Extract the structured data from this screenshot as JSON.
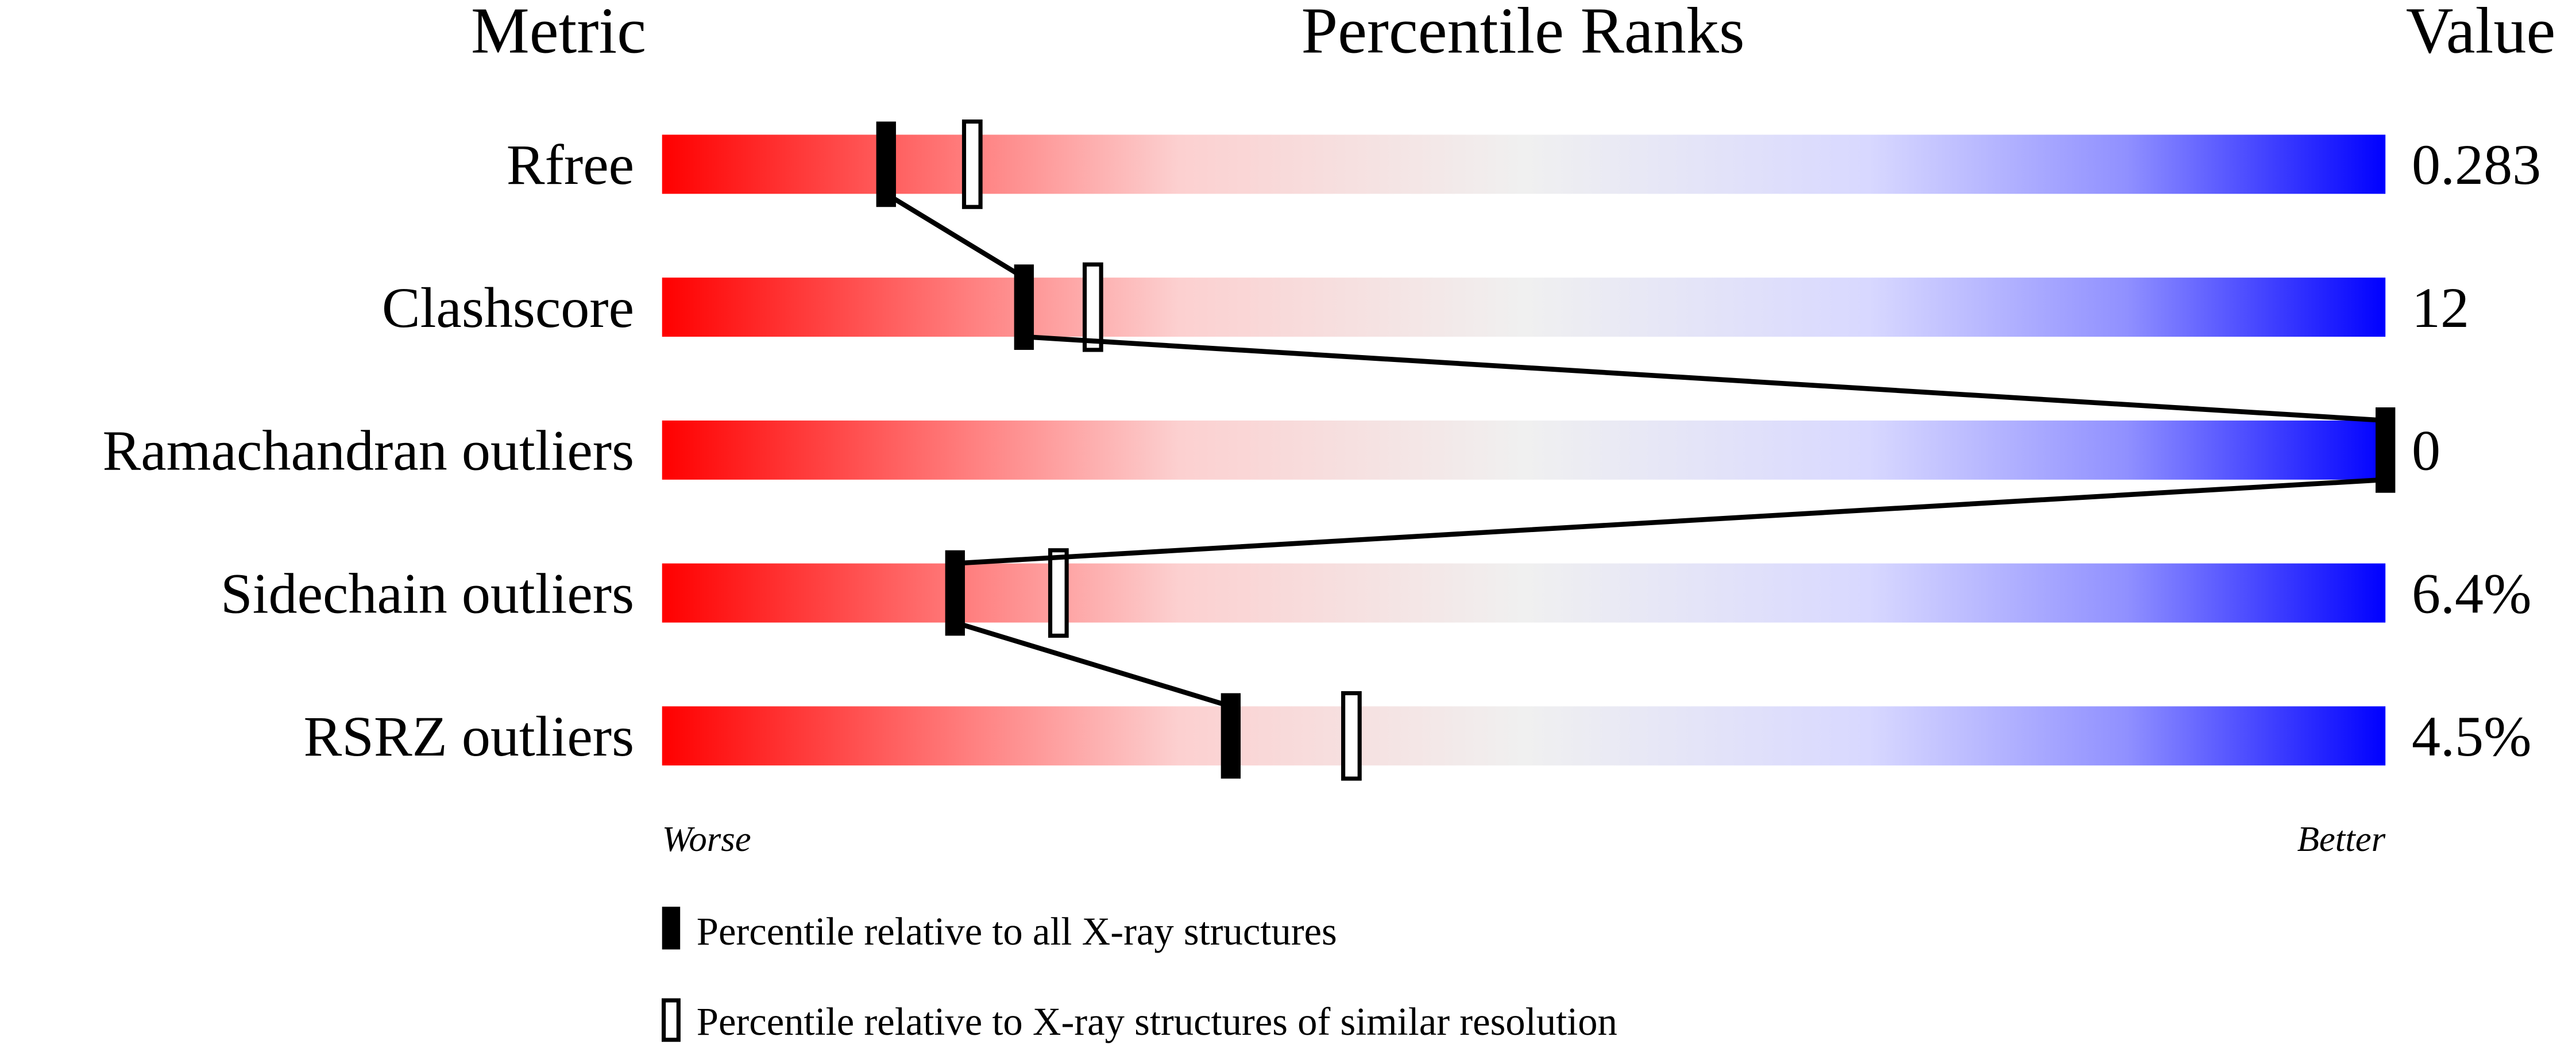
{
  "chart_data": {
    "type": "percentile-slider",
    "headers": {
      "metric": "Metric",
      "ranks": "Percentile Ranks",
      "value": "Value"
    },
    "xlim": [
      0,
      100
    ],
    "scale_labels": {
      "left": "Worse",
      "right": "Better"
    },
    "gradient_colors": [
      "#ff0000",
      "#f0f0f0",
      "#0000ff"
    ],
    "metrics": [
      {
        "name": "Rfree",
        "value": "0.283",
        "percentile_all": 13,
        "percentile_similar": 18
      },
      {
        "name": "Clashscore",
        "value": "12",
        "percentile_all": 21,
        "percentile_similar": 25
      },
      {
        "name": "Ramachandran outliers",
        "value": "0",
        "percentile_all": 100,
        "percentile_similar": 100
      },
      {
        "name": "Sidechain outliers",
        "value": "6.4%",
        "percentile_all": 17,
        "percentile_similar": 23
      },
      {
        "name": "RSRZ outliers",
        "value": "4.5%",
        "percentile_all": 33,
        "percentile_similar": 40
      }
    ],
    "legend": [
      {
        "marker": "filled",
        "label": "Percentile relative to all X-ray structures"
      },
      {
        "marker": "open",
        "label": "Percentile relative to X-ray structures of similar resolution"
      }
    ]
  }
}
